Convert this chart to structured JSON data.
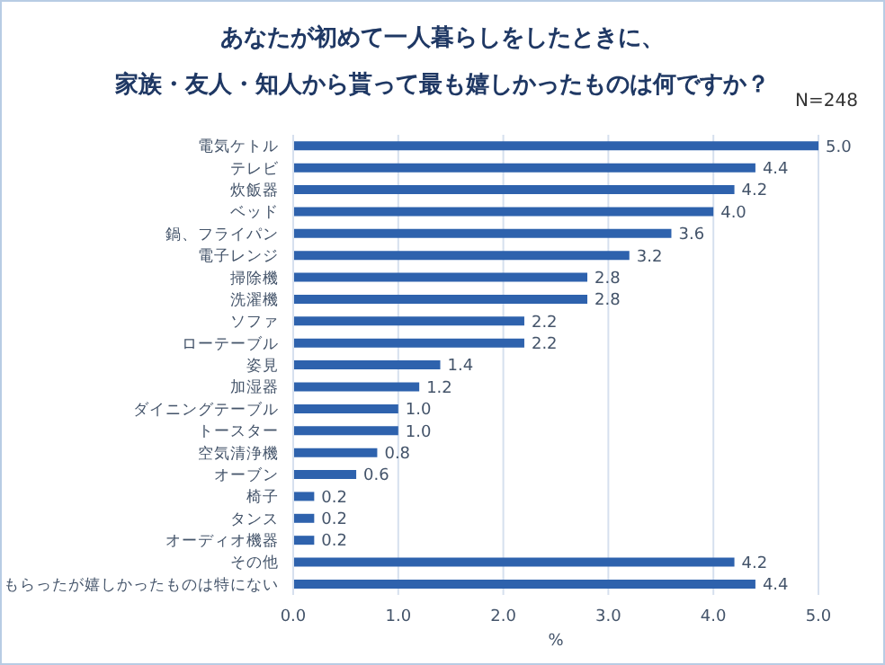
{
  "chart_data": {
    "type": "bar",
    "orientation": "horizontal",
    "title": "あなたが初めて一人暮らしをしたときに、",
    "subtitle": "家族・友人・知人から貰って最も嬉しかったものは何ですか？",
    "annotations": [
      "N=248"
    ],
    "xlabel": "%",
    "categories": [
      "電気ケトル",
      "テレビ",
      "炊飯器",
      "ベッド",
      "鍋、フライパン",
      "電子レンジ",
      "掃除機",
      "洗濯機",
      "ソファ",
      "ローテーブル",
      "姿見",
      "加湿器",
      "ダイニングテーブル",
      "トースター",
      "空気清浄機",
      "オーブン",
      "椅子",
      "タンス",
      "オーディオ機器",
      "その他",
      "もらったが嬉しかったものは特にない"
    ],
    "values": [
      5.0,
      4.4,
      4.2,
      4.0,
      3.6,
      3.2,
      2.8,
      2.8,
      2.2,
      2.2,
      1.4,
      1.2,
      1.0,
      1.0,
      0.8,
      0.6,
      0.2,
      0.2,
      0.2,
      4.2,
      4.4
    ],
    "value_labels": [
      "5.0",
      "4.4",
      "4.2",
      "4.0",
      "3.6",
      "3.2",
      "2.8",
      "2.8",
      "2.2",
      "2.2",
      "1.4",
      "1.2",
      "1.0",
      "1.0",
      "0.8",
      "0.6",
      "0.2",
      "0.2",
      "0.2",
      "4.2",
      "4.4"
    ],
    "color": "#2e62ad",
    "xlim": [
      0,
      5
    ],
    "xticks": [
      {
        "value": 0,
        "label": "0.0"
      },
      {
        "value": 1,
        "label": "1.0"
      },
      {
        "value": 2,
        "label": "2.0"
      },
      {
        "value": 3,
        "label": "3.0"
      },
      {
        "value": 4,
        "label": "4.0"
      },
      {
        "value": 5,
        "label": "5.0"
      }
    ],
    "grid": "x"
  }
}
